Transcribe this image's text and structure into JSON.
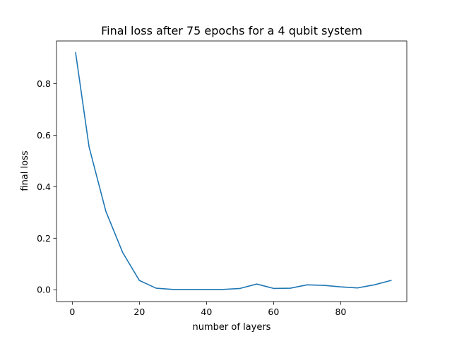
{
  "chart_data": {
    "type": "line",
    "title": "Final loss after 75 epochs for a 4 qubit system",
    "xlabel": "number of layers",
    "ylabel": "final loss",
    "xlim": [
      -4.7,
      99.7
    ],
    "ylim": [
      -0.046,
      0.966
    ],
    "xticks": [
      0,
      20,
      40,
      60,
      80
    ],
    "xtick_labels": [
      "0",
      "20",
      "40",
      "60",
      "80"
    ],
    "yticks": [
      0.0,
      0.2,
      0.4,
      0.6,
      0.8
    ],
    "ytick_labels": [
      "0.0",
      "0.2",
      "0.4",
      "0.6",
      "0.8"
    ],
    "grid": false,
    "legend": "none",
    "series": [
      {
        "color": "#1f77b4",
        "x": [
          1,
          5,
          10,
          15,
          20,
          25,
          30,
          35,
          40,
          45,
          50,
          55,
          60,
          65,
          70,
          75,
          80,
          85,
          90,
          95
        ],
        "values": [
          0.92,
          0.555,
          0.305,
          0.145,
          0.036,
          0.006,
          0.001,
          0.001,
          0.001,
          0.001,
          0.005,
          0.022,
          0.005,
          0.006,
          0.019,
          0.017,
          0.011,
          0.007,
          0.019,
          0.036
        ]
      }
    ]
  }
}
